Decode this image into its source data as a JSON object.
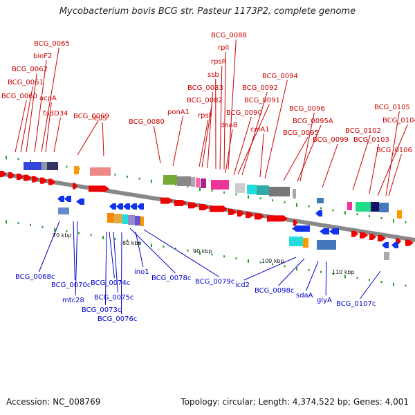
{
  "title": "Mycobacterium bovis BCG str. Pasteur 1173P2, complete genome",
  "footer": {
    "accession": "Accession: NC_008769",
    "summary": "Topology: circular; Length: 4,374,522 bp; Genes: 4,001"
  },
  "colors": {
    "forward_label": "#cc0000",
    "reverse_label": "#0000cc",
    "backbone": "#888888",
    "tick": "#2a9a2a",
    "forward_gene": "#ee0000",
    "reverse_gene": "#1133ee"
  },
  "scale_labels": [
    "70 kbp",
    "80 kbp",
    "90 kbp",
    "100 kbp",
    "110 kbp"
  ],
  "forward_labels": [
    "BCG_0088",
    "rplI",
    "rpsR",
    "ssb",
    "BCG_0083",
    "BCG_0082",
    "ponA1",
    "rpsF",
    "dnaB",
    "BCG_0094",
    "BCG_0092",
    "BCG_0091",
    "BCG_0090",
    "celA1",
    "BCG_0096",
    "BCG_0095A",
    "BCG_0095",
    "BCG_0099",
    "BCG_0105",
    "BCG_0104",
    "BCG_0102",
    "BCG_0103",
    "BCG_0106",
    "BCG_0065",
    "bioF2",
    "BCG_0062",
    "BCG_0061",
    "BCG_0060",
    "acpA",
    "fadD34",
    "BCG_0069",
    "leuS",
    "BCG_0080"
  ],
  "reverse_labels": [
    "BCG_0068c",
    "BCG_0070c",
    "mtc28",
    "BCG_0074c",
    "BCG_0075c",
    "BCG_0073c",
    "BCG_0076c",
    "ino1",
    "BCG_0078c",
    "BCG_0079c",
    "icd2",
    "BCG_0098c",
    "sdaA",
    "glyA",
    "BCG_0107c"
  ]
}
